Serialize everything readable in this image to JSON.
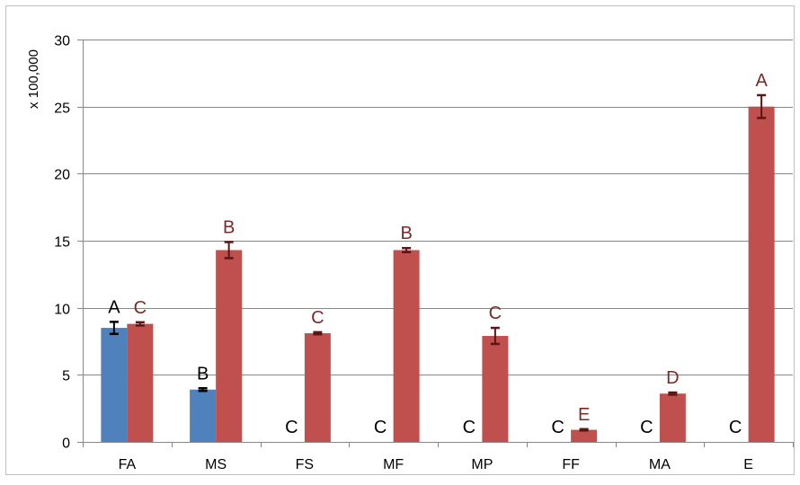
{
  "chart_data": {
    "type": "bar",
    "title": "",
    "xlabel": "",
    "ylabel": "x 100,000",
    "ylim": [
      0,
      30
    ],
    "yticks": [
      0,
      5,
      10,
      15,
      20,
      25,
      30
    ],
    "grid": true,
    "legend": "none",
    "categories": [
      "FA",
      "MS",
      "FS",
      "MF",
      "MP",
      "FF",
      "MA",
      "E"
    ],
    "series": [
      {
        "color": "#4f81bd",
        "label_color": "#000000",
        "error_color": "#000000",
        "values": [
          8.5,
          3.9,
          0,
          0,
          0,
          0,
          0,
          0
        ],
        "errors": [
          0.45,
          0.1,
          0,
          0,
          0,
          0,
          0,
          0
        ],
        "letters": [
          "A",
          "B",
          "C",
          "C",
          "C",
          "C",
          "C",
          "C"
        ]
      },
      {
        "color": "#c0504d",
        "label_color": "#7b2a28",
        "error_color": "#5a1614",
        "values": [
          8.8,
          14.3,
          8.1,
          14.3,
          7.9,
          0.9,
          3.6,
          25.0
        ],
        "errors": [
          0.12,
          0.6,
          0.08,
          0.15,
          0.6,
          0.05,
          0.08,
          0.85
        ],
        "letters": [
          "C",
          "B",
          "C",
          "B",
          "C",
          "E",
          "D",
          "A"
        ]
      }
    ]
  }
}
